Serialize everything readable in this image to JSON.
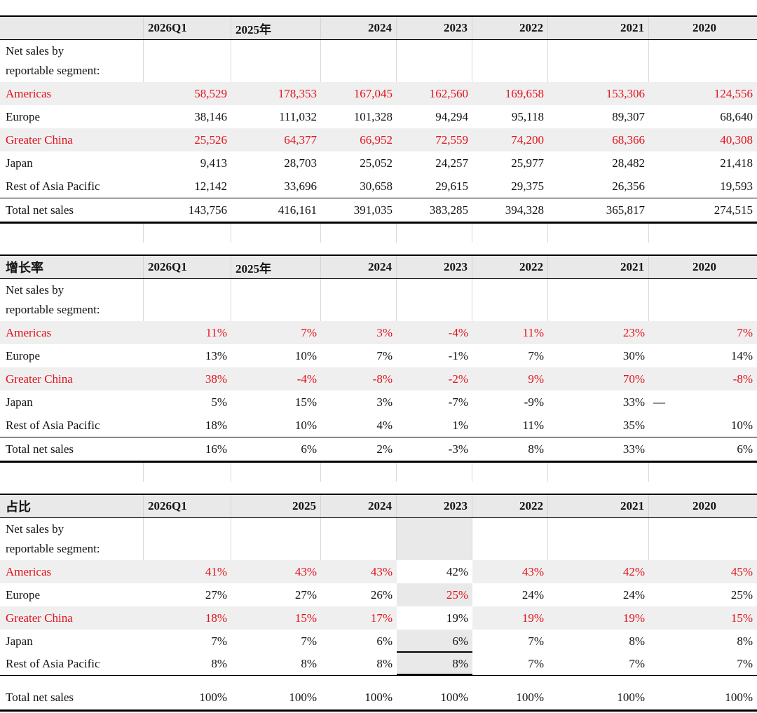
{
  "palette": {
    "red": "#e2121c",
    "row_shade": "#efefef",
    "header_shade": "#e9e9e9",
    "grid_line": "#d9d9d9",
    "border": "#000000"
  },
  "tables": [
    {
      "id": "table-net-sales",
      "title": "",
      "headers": [
        "2026Q1",
        "2025年",
        "2024",
        "2023",
        "2022",
        "2021",
        "2020"
      ],
      "header_align": [
        "left",
        "left",
        "right",
        "right",
        "right",
        "right",
        "right"
      ],
      "caption_lines": [
        "Net sales by",
        "reportable segment:"
      ],
      "rows": [
        {
          "label": "Americas",
          "red": true,
          "shaded": true,
          "values": [
            "58,529",
            "178,353",
            "167,045",
            "162,560",
            "169,658",
            "153,306",
            "124,556"
          ]
        },
        {
          "label": "Europe",
          "red": false,
          "shaded": false,
          "values": [
            "38,146",
            "111,032",
            "101,328",
            "94,294",
            "95,118",
            "89,307",
            "68,640"
          ]
        },
        {
          "label": "Greater China",
          "red": true,
          "shaded": true,
          "values": [
            "25,526",
            "64,377",
            "66,952",
            "72,559",
            "74,200",
            "68,366",
            "40,308"
          ]
        },
        {
          "label": "Japan",
          "red": false,
          "shaded": false,
          "values": [
            "9,413",
            "28,703",
            "25,052",
            "24,257",
            "25,977",
            "28,482",
            "21,418"
          ]
        },
        {
          "label": "Rest of Asia Pacific",
          "red": false,
          "shaded": false,
          "values": [
            "12,142",
            "33,696",
            "30,658",
            "29,615",
            "29,375",
            "26,356",
            "19,593"
          ]
        }
      ],
      "total": {
        "label": "Total net sales",
        "values": [
          "143,756",
          "416,161",
          "391,035",
          "383,285",
          "394,328",
          "365,817",
          "274,515"
        ]
      }
    },
    {
      "id": "table-growth-rate",
      "title": "增长率",
      "headers": [
        "2026Q1",
        "2025年",
        "2024",
        "2023",
        "2022",
        "2021",
        "2020"
      ],
      "header_align": [
        "left",
        "left",
        "right",
        "right",
        "right",
        "right",
        "right"
      ],
      "caption_lines": [
        "Net sales by",
        "reportable segment:"
      ],
      "rows": [
        {
          "label": "Americas",
          "red": true,
          "shaded": true,
          "values": [
            "11%",
            "7%",
            "3%",
            "-4%",
            "11%",
            "23%",
            "7%"
          ]
        },
        {
          "label": "Europe",
          "red": false,
          "shaded": false,
          "values": [
            "13%",
            "10%",
            "7%",
            "-1%",
            "7%",
            "30%",
            "14%"
          ]
        },
        {
          "label": "Greater China",
          "red": true,
          "shaded": true,
          "values": [
            "38%",
            "-4%",
            "-8%",
            "-2%",
            "9%",
            "70%",
            "-8%"
          ]
        },
        {
          "label": "Japan",
          "red": false,
          "shaded": false,
          "values": [
            "5%",
            "15%",
            "3%",
            "-7%",
            "-9%",
            "33%",
            "—"
          ]
        },
        {
          "label": "Rest of Asia Pacific",
          "red": false,
          "shaded": false,
          "values": [
            "18%",
            "10%",
            "4%",
            "1%",
            "11%",
            "35%",
            "10%"
          ]
        }
      ],
      "total": {
        "label": "Total net sales",
        "values": [
          "16%",
          "6%",
          "2%",
          "-3%",
          "8%",
          "33%",
          "6%"
        ]
      }
    },
    {
      "id": "table-share-of-total",
      "title": "占比",
      "headers": [
        "2026Q1",
        "2025",
        "2024",
        "2023",
        "2022",
        "2021",
        "2020"
      ],
      "header_align": [
        "left",
        "right",
        "right",
        "right",
        "right",
        "right",
        "right"
      ],
      "caption_lines": [
        "Net sales by",
        "reportable segment:"
      ],
      "highlight_col": 3,
      "total_separated": true,
      "rows": [
        {
          "label": "Americas",
          "red": true,
          "shaded": true,
          "values": [
            "41%",
            "43%",
            "43%",
            "42%",
            "43%",
            "42%",
            "45%"
          ],
          "cell_red": [
            true,
            true,
            true,
            false,
            true,
            true,
            true
          ]
        },
        {
          "label": "Europe",
          "red": false,
          "shaded": false,
          "values": [
            "27%",
            "27%",
            "26%",
            "25%",
            "24%",
            "24%",
            "25%"
          ],
          "cell_red": [
            false,
            false,
            false,
            true,
            false,
            false,
            false
          ]
        },
        {
          "label": "Greater China",
          "red": true,
          "shaded": true,
          "values": [
            "18%",
            "15%",
            "17%",
            "19%",
            "19%",
            "19%",
            "15%"
          ],
          "cell_red": [
            true,
            true,
            true,
            false,
            true,
            true,
            true
          ]
        },
        {
          "label": "Japan",
          "red": false,
          "shaded": false,
          "values": [
            "7%",
            "7%",
            "6%",
            "6%",
            "7%",
            "8%",
            "8%"
          ],
          "underline_cols": [
            3
          ]
        },
        {
          "label": "Rest of Asia Pacific",
          "red": false,
          "shaded": false,
          "values": [
            "8%",
            "8%",
            "8%",
            "8%",
            "7%",
            "7%",
            "7%"
          ],
          "underline_cols": [
            3
          ]
        }
      ],
      "total": {
        "label": "Total net sales",
        "values": [
          "100%",
          "100%",
          "100%",
          "100%",
          "100%",
          "100%",
          "100%"
        ]
      }
    }
  ]
}
